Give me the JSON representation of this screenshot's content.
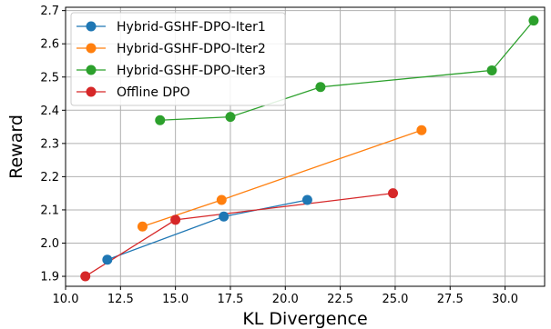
{
  "chart_data": {
    "type": "line",
    "title": "",
    "xlabel": "KL Divergence",
    "ylabel": "Reward",
    "xlim": [
      10.0,
      31.8
    ],
    "ylim": [
      1.87,
      2.71
    ],
    "x_ticks": [
      "10.0",
      "12.5",
      "15.0",
      "17.5",
      "20.0",
      "22.5",
      "25.0",
      "27.5",
      "30.0"
    ],
    "y_ticks": [
      "1.9",
      "2.0",
      "2.1",
      "2.2",
      "2.3",
      "2.4",
      "2.5",
      "2.6",
      "2.7"
    ],
    "grid": true,
    "legend_position": "top-left",
    "series": [
      {
        "name": "Hybrid-GSHF-DPO-Iter1",
        "color": "#1f77b4",
        "points": [
          [
            11.9,
            1.95
          ],
          [
            17.2,
            2.08
          ],
          [
            21.0,
            2.13
          ]
        ]
      },
      {
        "name": "Hybrid-GSHF-DPO-Iter2",
        "color": "#ff7f0e",
        "points": [
          [
            13.5,
            2.05
          ],
          [
            17.1,
            2.13
          ],
          [
            26.2,
            2.34
          ]
        ]
      },
      {
        "name": "Hybrid-GSHF-DPO-Iter3",
        "color": "#2ca02c",
        "points": [
          [
            14.3,
            2.37
          ],
          [
            17.5,
            2.38
          ],
          [
            21.6,
            2.47
          ],
          [
            29.4,
            2.52
          ],
          [
            31.3,
            2.67
          ]
        ]
      },
      {
        "name": "Offline DPO",
        "color": "#d62728",
        "points": [
          [
            10.9,
            1.9
          ],
          [
            15.0,
            2.07
          ],
          [
            24.9,
            2.15
          ]
        ]
      }
    ]
  }
}
